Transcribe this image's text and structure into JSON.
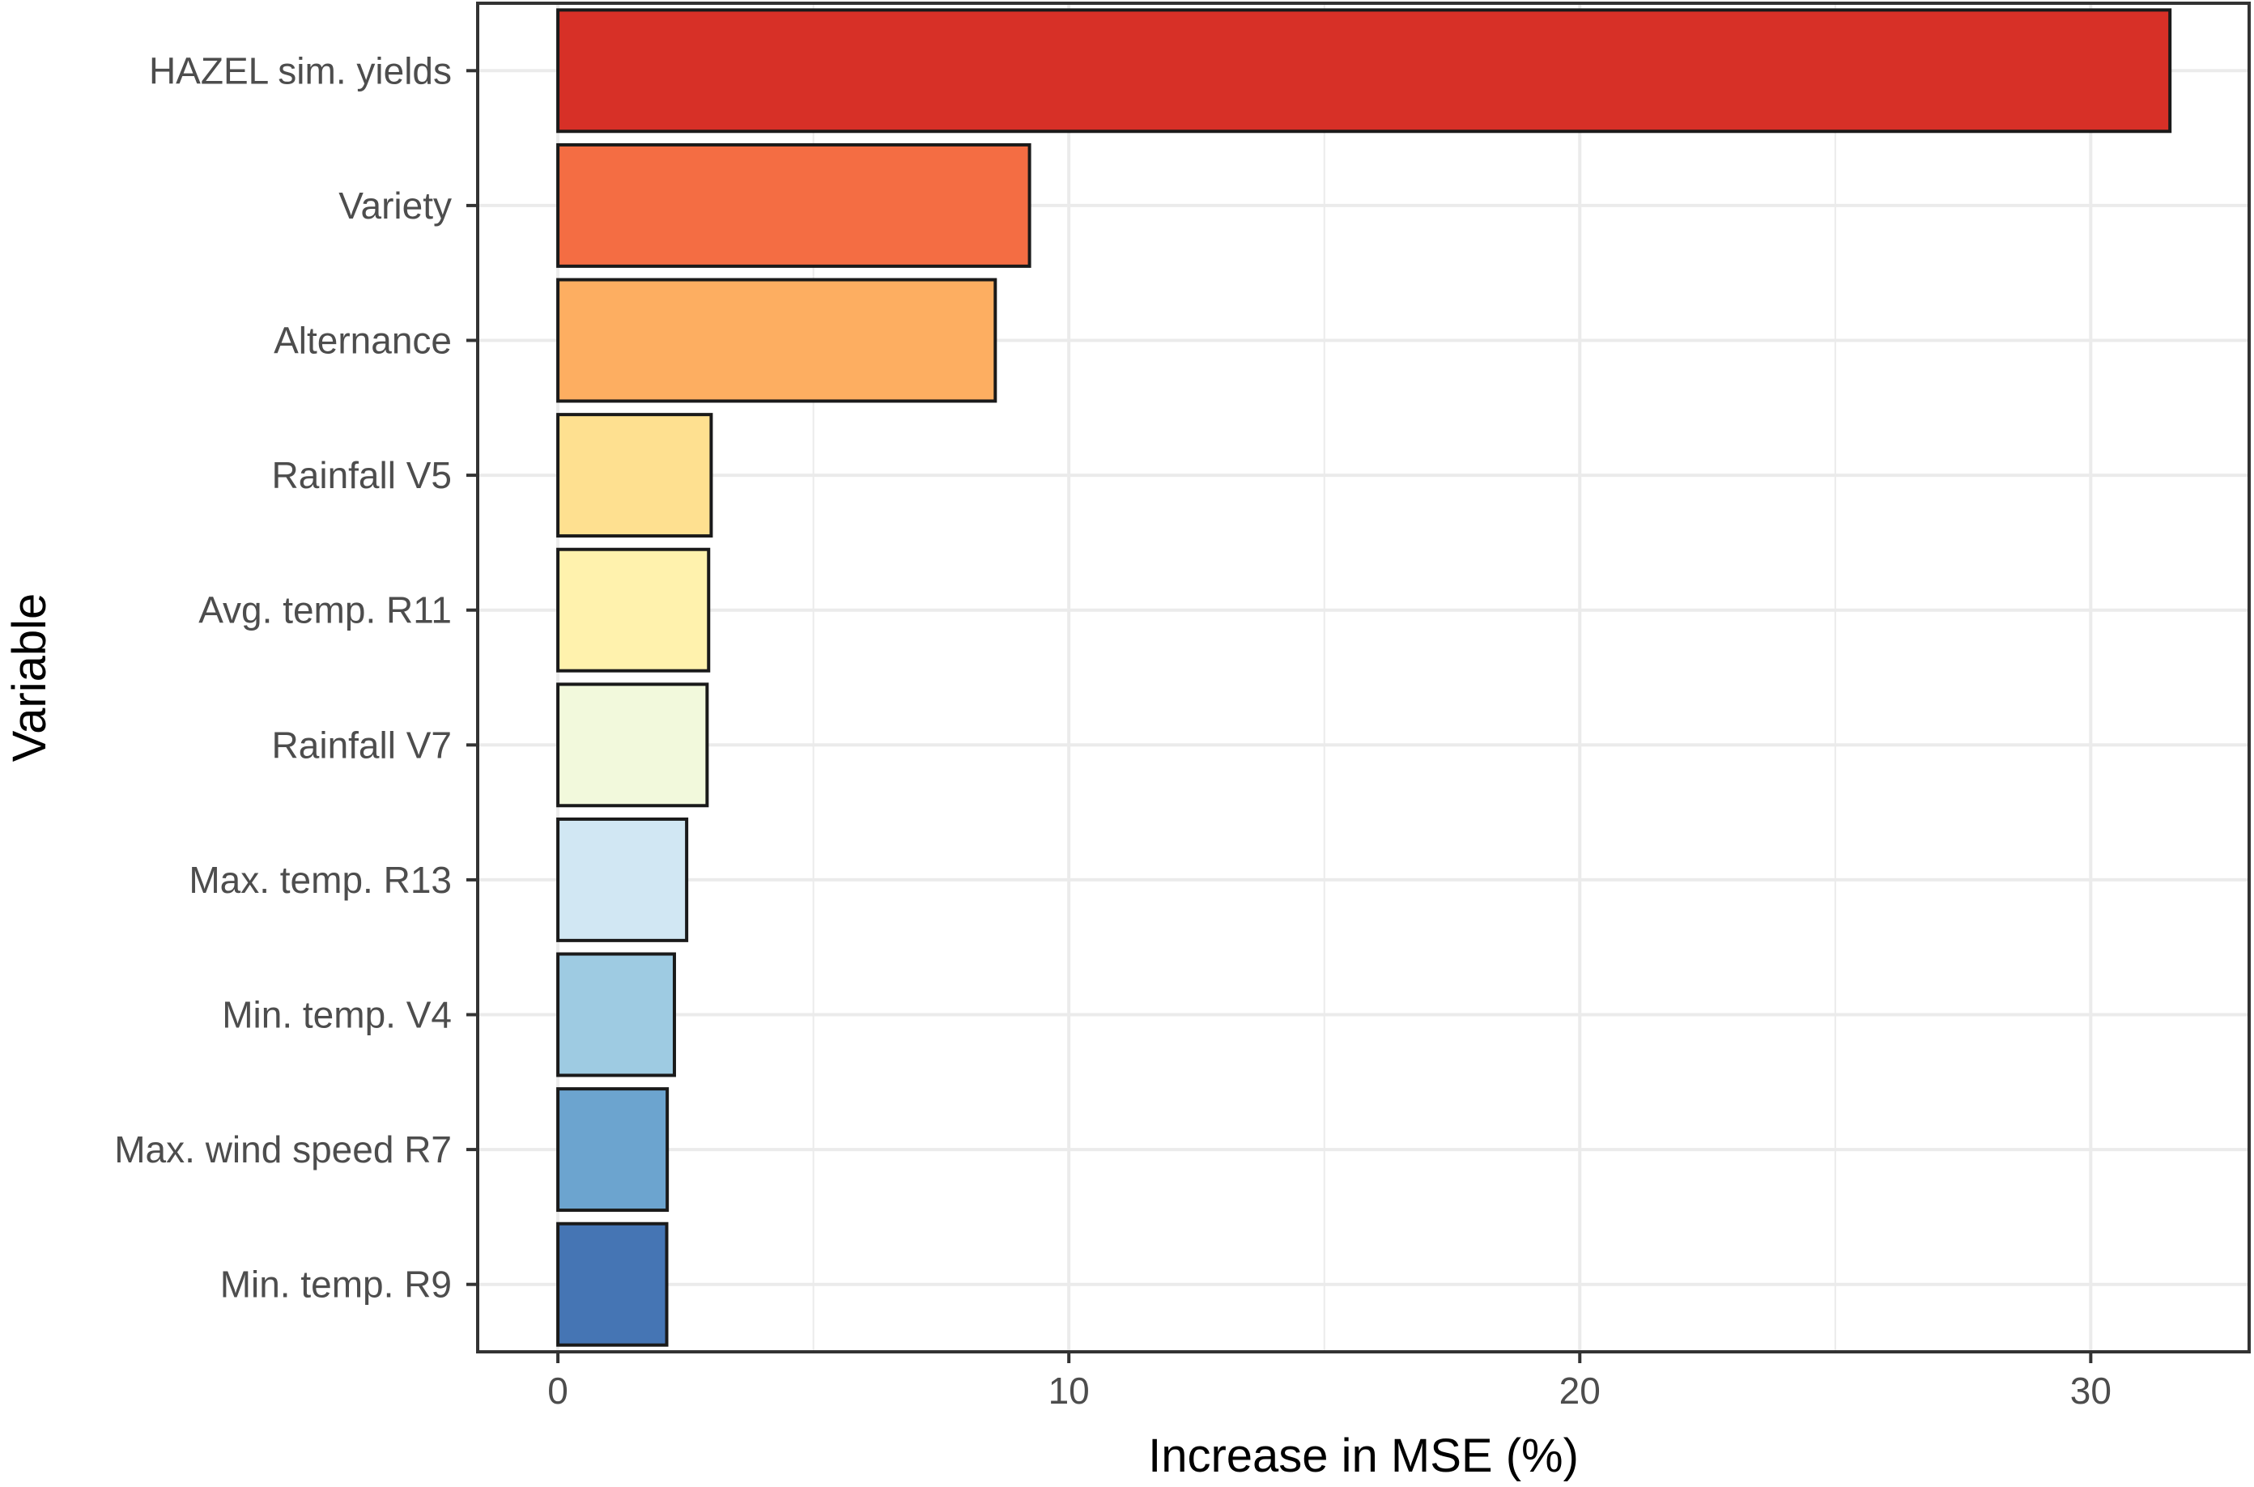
{
  "chart_data": {
    "type": "bar",
    "orientation": "horizontal",
    "title": "",
    "xlabel": "Increase in MSE (%)",
    "ylabel": "Variable",
    "xlim": [
      -1.57,
      33.1
    ],
    "x_ticks": [
      "0",
      "10",
      "20",
      "30"
    ],
    "x_tick_values": [
      0,
      10,
      20,
      30
    ],
    "grid": true,
    "legend": "none",
    "categories": [
      "HAZEL sim. yields",
      "Variety",
      "Alternance",
      "Rainfall V5",
      "Avg. temp. R11",
      "Rainfall V7",
      "Max. temp. R13",
      "Min. temp. V4",
      "Max. wind speed R7",
      "Min. temp. R9"
    ],
    "values": [
      31.55,
      9.23,
      8.56,
      3.0,
      2.95,
      2.92,
      2.52,
      2.28,
      2.14,
      2.13
    ],
    "colors": [
      "#d73027",
      "#f46d43",
      "#fdae61",
      "#fee090",
      "#fff2ad",
      "#f2f9dc",
      "#d1e7f3",
      "#9ecbe2",
      "#6ca4cf",
      "#4575b4"
    ]
  }
}
